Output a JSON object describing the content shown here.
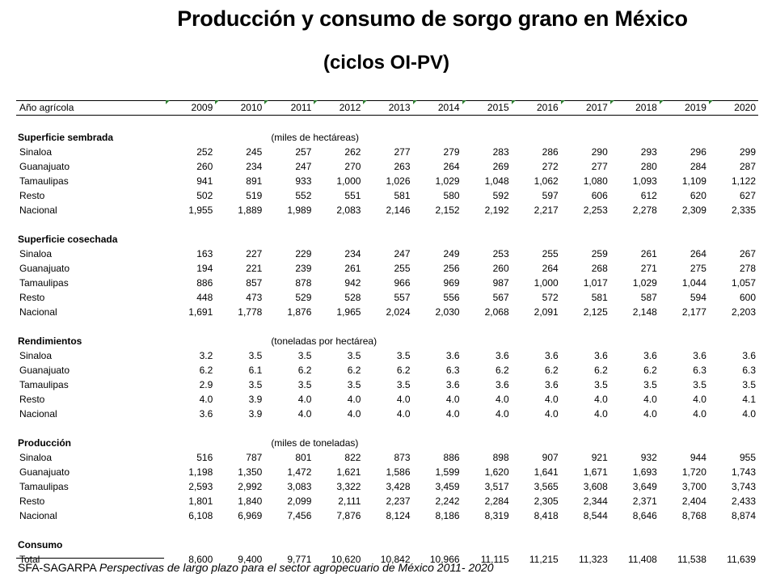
{
  "title": "Producción y consumo de sorgo grano en México",
  "subtitle": "(ciclos OI-PV)",
  "header": {
    "label": "Año agrícola",
    "years": [
      "2009",
      "2010",
      "2011",
      "2012",
      "2013",
      "2014",
      "2015",
      "2016",
      "2017",
      "2018",
      "2019",
      "2020"
    ]
  },
  "sections": [
    {
      "name": "Superficie sembrada",
      "unit": "(miles de hectáreas)",
      "rows": [
        {
          "label": "Sinaloa",
          "values": [
            "252",
            "245",
            "257",
            "262",
            "277",
            "279",
            "283",
            "286",
            "290",
            "293",
            "296",
            "299"
          ]
        },
        {
          "label": "Guanajuato",
          "values": [
            "260",
            "234",
            "247",
            "270",
            "263",
            "264",
            "269",
            "272",
            "277",
            "280",
            "284",
            "287"
          ]
        },
        {
          "label": "Tamaulipas",
          "values": [
            "941",
            "891",
            "933",
            "1,000",
            "1,026",
            "1,029",
            "1,048",
            "1,062",
            "1,080",
            "1,093",
            "1,109",
            "1,122"
          ]
        },
        {
          "label": "Resto",
          "values": [
            "502",
            "519",
            "552",
            "551",
            "581",
            "580",
            "592",
            "597",
            "606",
            "612",
            "620",
            "627"
          ]
        },
        {
          "label": "Nacional",
          "values": [
            "1,955",
            "1,889",
            "1,989",
            "2,083",
            "2,146",
            "2,152",
            "2,192",
            "2,217",
            "2,253",
            "2,278",
            "2,309",
            "2,335"
          ]
        }
      ]
    },
    {
      "name": "Superficie cosechada",
      "unit": "",
      "rows": [
        {
          "label": "Sinaloa",
          "values": [
            "163",
            "227",
            "229",
            "234",
            "247",
            "249",
            "253",
            "255",
            "259",
            "261",
            "264",
            "267"
          ]
        },
        {
          "label": "Guanajuato",
          "values": [
            "194",
            "221",
            "239",
            "261",
            "255",
            "256",
            "260",
            "264",
            "268",
            "271",
            "275",
            "278"
          ]
        },
        {
          "label": "Tamaulipas",
          "values": [
            "886",
            "857",
            "878",
            "942",
            "966",
            "969",
            "987",
            "1,000",
            "1,017",
            "1,029",
            "1,044",
            "1,057"
          ]
        },
        {
          "label": "Resto",
          "values": [
            "448",
            "473",
            "529",
            "528",
            "557",
            "556",
            "567",
            "572",
            "581",
            "587",
            "594",
            "600"
          ]
        },
        {
          "label": "Nacional",
          "values": [
            "1,691",
            "1,778",
            "1,876",
            "1,965",
            "2,024",
            "2,030",
            "2,068",
            "2,091",
            "2,125",
            "2,148",
            "2,177",
            "2,203"
          ]
        }
      ]
    },
    {
      "name": "Rendimientos",
      "unit": "(toneladas por hectárea)",
      "rows": [
        {
          "label": "Sinaloa",
          "values": [
            "3.2",
            "3.5",
            "3.5",
            "3.5",
            "3.5",
            "3.6",
            "3.6",
            "3.6",
            "3.6",
            "3.6",
            "3.6",
            "3.6"
          ]
        },
        {
          "label": "Guanajuato",
          "values": [
            "6.2",
            "6.1",
            "6.2",
            "6.2",
            "6.2",
            "6.3",
            "6.2",
            "6.2",
            "6.2",
            "6.2",
            "6.3",
            "6.3"
          ]
        },
        {
          "label": "Tamaulipas",
          "values": [
            "2.9",
            "3.5",
            "3.5",
            "3.5",
            "3.5",
            "3.6",
            "3.6",
            "3.6",
            "3.5",
            "3.5",
            "3.5",
            "3.5"
          ]
        },
        {
          "label": "Resto",
          "values": [
            "4.0",
            "3.9",
            "4.0",
            "4.0",
            "4.0",
            "4.0",
            "4.0",
            "4.0",
            "4.0",
            "4.0",
            "4.0",
            "4.1"
          ]
        },
        {
          "label": "Nacional",
          "values": [
            "3.6",
            "3.9",
            "4.0",
            "4.0",
            "4.0",
            "4.0",
            "4.0",
            "4.0",
            "4.0",
            "4.0",
            "4.0",
            "4.0"
          ]
        }
      ]
    },
    {
      "name": "Producción",
      "unit": "(miles de toneladas)",
      "rows": [
        {
          "label": "Sinaloa",
          "values": [
            "516",
            "787",
            "801",
            "822",
            "873",
            "886",
            "898",
            "907",
            "921",
            "932",
            "944",
            "955"
          ]
        },
        {
          "label": "Guanajuato",
          "values": [
            "1,198",
            "1,350",
            "1,472",
            "1,621",
            "1,586",
            "1,599",
            "1,620",
            "1,641",
            "1,671",
            "1,693",
            "1,720",
            "1,743"
          ]
        },
        {
          "label": "Tamaulipas",
          "values": [
            "2,593",
            "2,992",
            "3,083",
            "3,322",
            "3,428",
            "3,459",
            "3,517",
            "3,565",
            "3,608",
            "3,649",
            "3,700",
            "3,743"
          ]
        },
        {
          "label": "Resto",
          "values": [
            "1,801",
            "1,840",
            "2,099",
            "2,111",
            "2,237",
            "2,242",
            "2,284",
            "2,305",
            "2,344",
            "2,371",
            "2,404",
            "2,433"
          ]
        },
        {
          "label": "Nacional",
          "values": [
            "6,108",
            "6,969",
            "7,456",
            "7,876",
            "8,124",
            "8,186",
            "8,319",
            "8,418",
            "8,544",
            "8,646",
            "8,768",
            "8,874"
          ]
        }
      ]
    },
    {
      "name": "Consumo",
      "unit": "",
      "rows": [
        {
          "label": "Total",
          "values": [
            "8,600",
            "9,400",
            "9,771",
            "10,620",
            "10,842",
            "10,966",
            "11,115",
            "11,215",
            "11,323",
            "11,408",
            "11,538",
            "11,639"
          ]
        }
      ]
    }
  ],
  "source": {
    "prefix": "SFA-SAGARPA ",
    "italic": "Perspectivas de largo plazo para el sector agropecuario de México 2011- 2020"
  }
}
